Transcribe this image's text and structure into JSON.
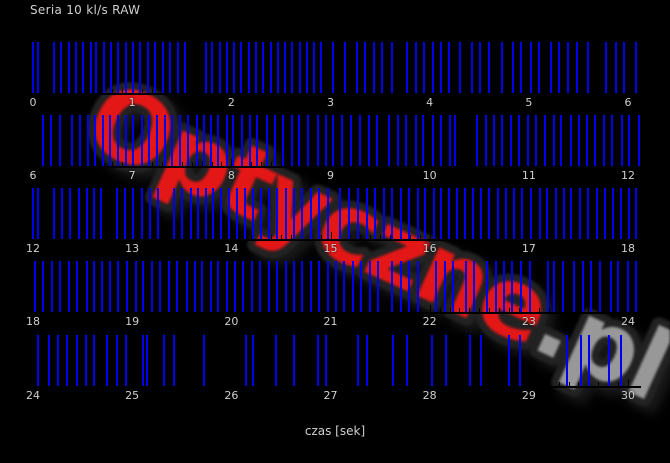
{
  "colors": {
    "background": "#000000",
    "frame_line": "#0000ee",
    "axis": "#000000",
    "label_text": "#cfcfcf"
  },
  "watermark": {
    "main": "Optyczne",
    "suffix": ".pl",
    "main_color": "#e41717",
    "suffix_color": "#989898",
    "outline_color": "#222222"
  },
  "chart_data": {
    "type": "scatter",
    "subtype": "event-raster (frame capture times, 5 stacked 6-second strips)",
    "title": "Seria 10 kl/s RAW",
    "xlabel": "czas [sek]",
    "units": "seconds",
    "grid": false,
    "legend": "none",
    "major_tick_step": 1,
    "minor_tick_step": 0.1,
    "rows": [
      {
        "start": 0,
        "end": 6,
        "tick_labels": [
          "0",
          "1",
          "2",
          "3",
          "4",
          "5",
          "6"
        ],
        "frame_times": [
          0.0,
          0.05,
          0.21,
          0.28,
          0.36,
          0.43,
          0.5,
          0.58,
          0.64,
          0.72,
          0.79,
          0.86,
          0.94,
          1.01,
          1.08,
          1.16,
          1.23,
          1.31,
          1.38,
          1.46,
          1.53,
          1.74,
          1.81,
          1.89,
          1.96,
          2.03,
          2.1,
          2.18,
          2.25,
          2.32,
          2.4,
          2.47,
          2.54,
          2.61,
          2.69,
          2.76,
          2.83,
          2.9,
          3.03,
          3.15,
          3.27,
          3.35,
          3.44,
          3.52,
          3.62,
          3.77,
          3.86,
          3.94,
          4.03,
          4.11,
          4.19,
          4.31,
          4.43,
          4.51,
          4.6,
          4.73,
          4.84,
          4.92,
          5.02,
          5.1,
          5.22,
          5.3,
          5.39,
          5.49,
          5.6,
          5.78,
          5.88,
          5.96,
          6.08
        ]
      },
      {
        "start": 6,
        "end": 12,
        "tick_labels": [
          "6",
          "7",
          "8",
          "9",
          "10",
          "11",
          "12"
        ],
        "frame_times": [
          6.1,
          6.18,
          6.27,
          6.39,
          6.47,
          6.55,
          6.63,
          6.71,
          6.78,
          6.86,
          6.94,
          7.01,
          7.1,
          7.17,
          7.25,
          7.33,
          7.4,
          7.48,
          7.56,
          7.65,
          7.72,
          7.79,
          7.87,
          7.96,
          8.02,
          8.11,
          8.19,
          8.26,
          8.36,
          8.44,
          8.52,
          8.61,
          8.68,
          8.77,
          8.87,
          8.95,
          9.03,
          9.12,
          9.21,
          9.3,
          9.39,
          9.47,
          9.59,
          9.68,
          9.76,
          9.86,
          9.93,
          10.03,
          10.11,
          10.2,
          10.26,
          10.48,
          10.57,
          10.65,
          10.73,
          10.82,
          10.9,
          10.99,
          11.07,
          11.16,
          11.25,
          11.32,
          11.42,
          11.51,
          11.59,
          11.67,
          11.76,
          11.84,
          11.94,
          12.01,
          12.11
        ]
      },
      {
        "start": 12,
        "end": 18,
        "tick_labels": [
          "12",
          "13",
          "14",
          "15",
          "16",
          "17",
          "18"
        ],
        "frame_times": [
          12.0,
          12.05,
          12.21,
          12.29,
          12.37,
          12.46,
          12.54,
          12.62,
          12.69,
          12.85,
          12.93,
          13.01,
          13.1,
          13.18,
          13.26,
          13.42,
          13.5,
          13.59,
          13.66,
          13.74,
          13.82,
          13.9,
          13.98,
          14.06,
          14.14,
          14.22,
          14.3,
          14.38,
          14.46,
          14.55,
          14.63,
          14.71,
          14.8,
          14.88,
          14.97,
          15.1,
          15.19,
          15.28,
          15.37,
          15.45,
          15.54,
          15.62,
          15.71,
          15.79,
          15.88,
          15.95,
          16.04,
          16.11,
          16.19,
          16.28,
          16.36,
          16.44,
          16.52,
          16.6,
          16.69,
          16.77,
          16.85,
          16.93,
          17.02,
          17.11,
          17.18,
          17.27,
          17.35,
          17.43,
          17.52,
          17.6,
          17.69,
          17.77,
          17.85,
          17.93,
          18.01,
          18.08
        ]
      },
      {
        "start": 18,
        "end": 24,
        "tick_labels": [
          "18",
          "19",
          "20",
          "21",
          "22",
          "23",
          "24"
        ],
        "frame_times": [
          18.02,
          18.1,
          18.19,
          18.27,
          18.36,
          18.44,
          18.54,
          18.62,
          18.7,
          18.78,
          18.86,
          18.95,
          19.04,
          19.11,
          19.2,
          19.28,
          19.37,
          19.45,
          19.55,
          19.63,
          19.7,
          19.79,
          19.87,
          19.96,
          20.04,
          20.12,
          20.21,
          20.29,
          20.38,
          20.46,
          20.55,
          20.63,
          20.71,
          20.8,
          20.88,
          20.97,
          21.06,
          21.14,
          21.23,
          21.31,
          21.4,
          21.48,
          21.62,
          21.71,
          21.79,
          21.88,
          22.06,
          22.15,
          22.24,
          22.37,
          22.45,
          22.58,
          22.67,
          22.75,
          22.83,
          22.92,
          23.01,
          23.19,
          23.25,
          23.34,
          23.46,
          23.55,
          23.63,
          23.72,
          23.83,
          23.9,
          24.0,
          24.08
        ]
      },
      {
        "start": 24,
        "end": 30,
        "tick_labels": [
          "24",
          "25",
          "26",
          "27",
          "28",
          "29",
          "30"
        ],
        "frame_times": [
          24.05,
          24.16,
          24.25,
          24.34,
          24.44,
          24.53,
          24.62,
          24.75,
          24.85,
          24.94,
          25.11,
          25.15,
          25.32,
          25.42,
          25.72,
          26.15,
          26.22,
          26.45,
          26.63,
          26.87,
          26.95,
          27.28,
          27.37,
          27.63,
          27.77,
          28.02,
          28.16,
          28.41,
          28.52,
          28.8,
          28.91,
          29.38,
          29.53,
          29.61,
          29.81,
          29.93
        ]
      }
    ]
  }
}
